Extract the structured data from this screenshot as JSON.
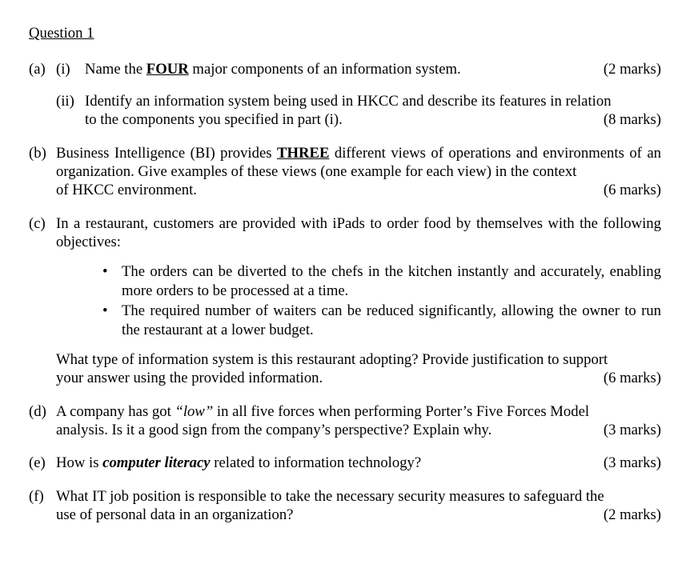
{
  "title": "Question 1",
  "parts": {
    "a": {
      "label": "(a)",
      "sub": {
        "i": {
          "label": "(i)",
          "text_pre": "Name the ",
          "text_bold": "FOUR",
          "text_post": " major components of an information system.",
          "marks": "(2 marks)"
        },
        "ii": {
          "label": "(ii)",
          "line1": "Identify an information system being used in HKCC and describe its features in relation",
          "line2": "to the components you specified in part (i).",
          "marks": "(8 marks)"
        }
      }
    },
    "b": {
      "label": "(b)",
      "seg1": "Business Intelligence (BI) provides ",
      "bold": "THREE",
      "seg2": " different views of operations and environments of an organization. Give examples of these views (one example for each view) in the context",
      "line3": "of HKCC environment.",
      "marks": "(6 marks)"
    },
    "c": {
      "label": "(c)",
      "intro": "In a restaurant, customers are provided with iPads to order food by themselves with the following objectives:",
      "bullets": [
        "The orders can be diverted to the chefs in the kitchen instantly and accurately, enabling more orders to be processed at a time.",
        "The required number of waiters can be reduced significantly, allowing the owner to run the restaurant at a lower budget."
      ],
      "q_line1": "What type of information system is this restaurant adopting? Provide justification to support",
      "q_line2": "your answer using the provided information.",
      "marks": "(6 marks)"
    },
    "d": {
      "label": "(d)",
      "seg1": "A company has got ",
      "italic": "“low”",
      "seg2": " in all five forces when performing Porter’s Five Forces Model",
      "line2": "analysis. Is it a good sign from the company’s perspective? Explain why.",
      "marks": "(3 marks)"
    },
    "e": {
      "label": "(e)",
      "seg1": "How is ",
      "bolditalic": "computer literacy",
      "seg2": " related to information technology?",
      "marks": "(3 marks)"
    },
    "f": {
      "label": "(f)",
      "line1": "What IT job position is responsible to take the necessary security measures to safeguard the",
      "line2": "use of personal data in an organization?",
      "marks": "(2 marks)"
    }
  }
}
